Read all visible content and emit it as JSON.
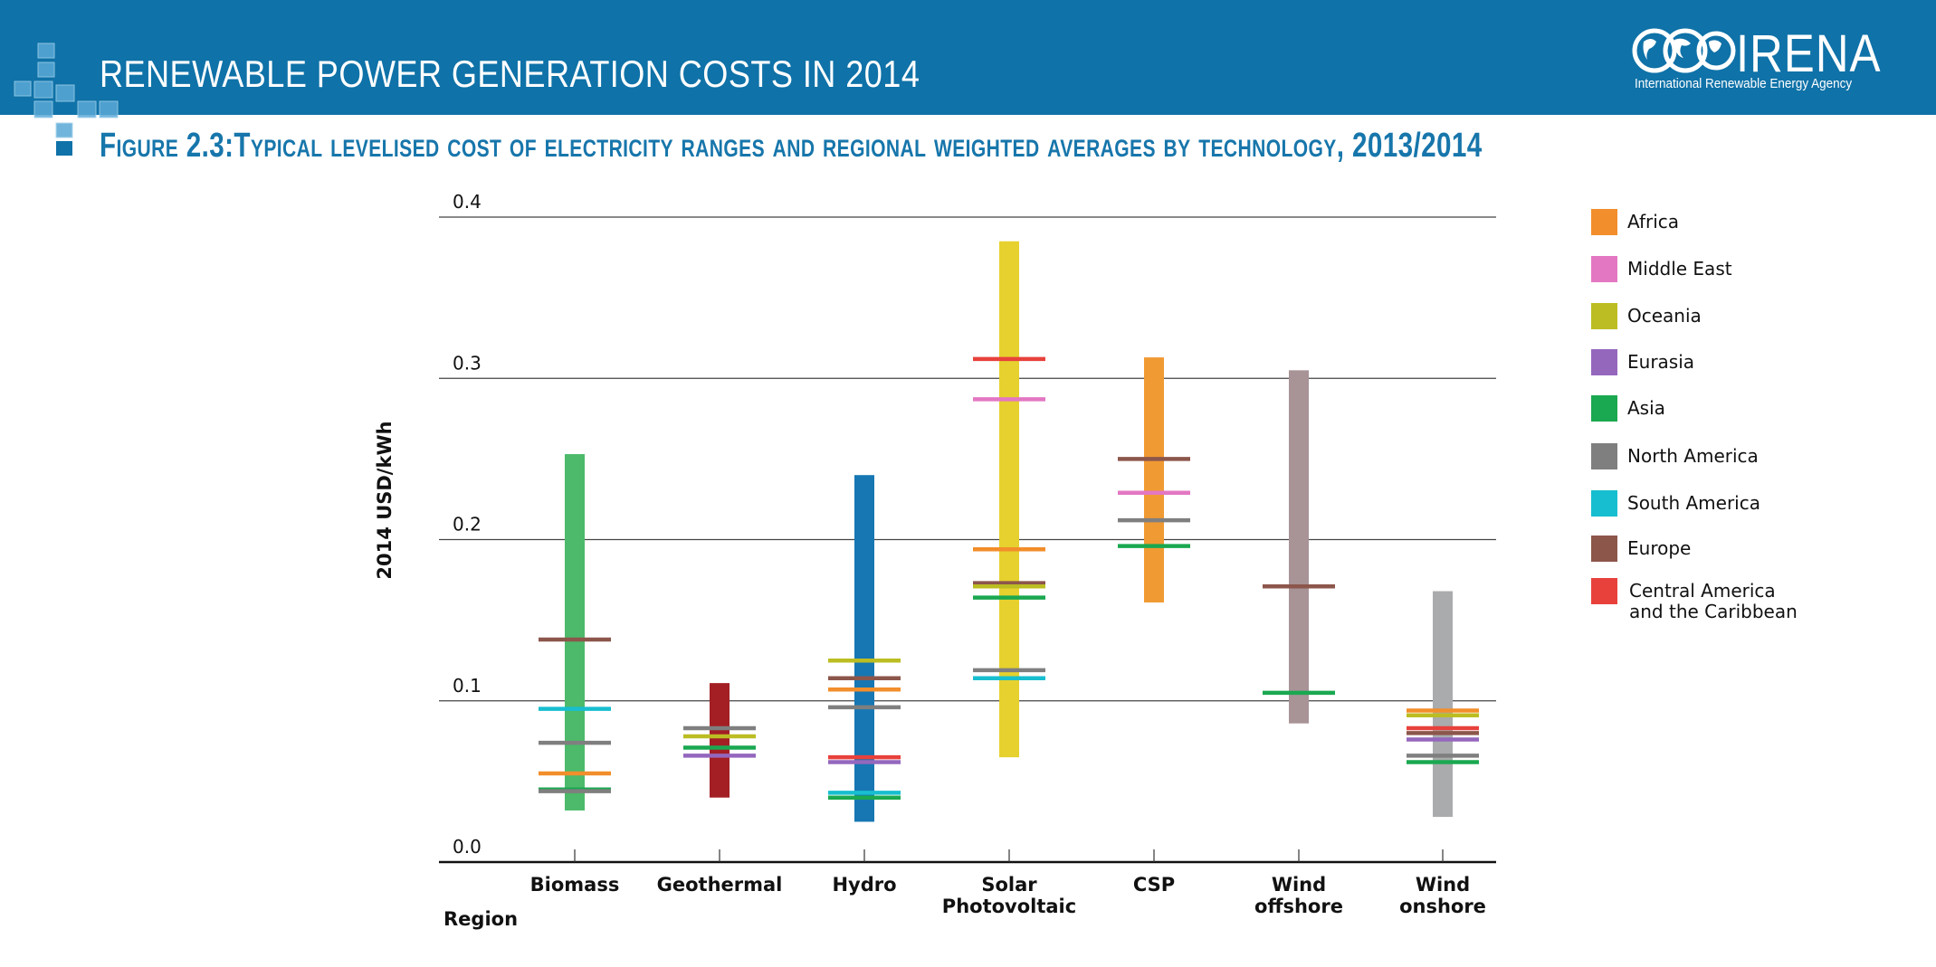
{
  "header": {
    "banner_title": "RENEWABLE POWER GENERATION COSTS IN 2014",
    "logo_text": "IRENA",
    "logo_subtitle": "International Renewable Energy Agency",
    "figure_title": "Figure 2.3:Typical levelised cost of electricity ranges and regional weighted averages by technology, 2013/2014",
    "banner_color": "#0f72a8"
  },
  "chart_data": {
    "type": "range-bar",
    "title": "Typical levelised cost of electricity ranges and regional weighted averages by technology, 2013/2014",
    "ylabel": "2014 USD/kWh",
    "xlabel": "Region",
    "ylim": [
      0,
      0.4
    ],
    "yticks": [
      "0.0",
      "0.1",
      "0.2",
      "0.3",
      "0.4"
    ],
    "grid": true,
    "legend_position": "right",
    "regions": [
      {
        "name": "Africa",
        "color": "#f28e2b"
      },
      {
        "name": "Middle East",
        "color": "#e377c2"
      },
      {
        "name": "Oceania",
        "color": "#bcbd22"
      },
      {
        "name": "Eurasia",
        "color": "#9467bd"
      },
      {
        "name": "Asia",
        "color": "#1aa850"
      },
      {
        "name": "North America",
        "color": "#7f7f7f"
      },
      {
        "name": "South America",
        "color": "#17becf"
      },
      {
        "name": "Europe",
        "color": "#8c564b"
      },
      {
        "name": "Central America and the Caribbean",
        "color": "#e8413c"
      }
    ],
    "technologies": [
      {
        "label": "Biomass",
        "range": [
          0.032,
          0.253
        ],
        "color": "#4cba6a",
        "averages": [
          {
            "region": "Europe",
            "value": 0.138
          },
          {
            "region": "South America",
            "value": 0.095
          },
          {
            "region": "North America",
            "value": 0.074
          },
          {
            "region": "Africa",
            "value": 0.055
          },
          {
            "region": "Asia",
            "value": 0.045
          },
          {
            "region": "North America",
            "value": 0.044
          }
        ]
      },
      {
        "label": "Geothermal",
        "range": [
          0.04,
          0.111
        ],
        "color": "#a31f24",
        "averages": [
          {
            "region": "North America",
            "value": 0.083
          },
          {
            "region": "Oceania",
            "value": 0.078
          },
          {
            "region": "Asia",
            "value": 0.071
          },
          {
            "region": "Eurasia",
            "value": 0.066
          }
        ]
      },
      {
        "label": "Hydro",
        "range": [
          0.025,
          0.24
        ],
        "color": "#1677b3",
        "averages": [
          {
            "region": "Oceania",
            "value": 0.125
          },
          {
            "region": "Europe",
            "value": 0.114
          },
          {
            "region": "Africa",
            "value": 0.107
          },
          {
            "region": "North America",
            "value": 0.096
          },
          {
            "region": "Central America and the Caribbean",
            "value": 0.065
          },
          {
            "region": "Eurasia",
            "value": 0.062
          },
          {
            "region": "South America",
            "value": 0.043
          },
          {
            "region": "Asia",
            "value": 0.04
          }
        ]
      },
      {
        "label": "Solar Photovoltaic",
        "range": [
          0.065,
          0.385
        ],
        "color": "#e6d12e",
        "averages": [
          {
            "region": "Central America and the Caribbean",
            "value": 0.312
          },
          {
            "region": "Middle East",
            "value": 0.287
          },
          {
            "region": "Africa",
            "value": 0.194
          },
          {
            "region": "Europe",
            "value": 0.173
          },
          {
            "region": "Oceania",
            "value": 0.171
          },
          {
            "region": "Asia",
            "value": 0.164
          },
          {
            "region": "North America",
            "value": 0.119
          },
          {
            "region": "South America",
            "value": 0.114
          }
        ]
      },
      {
        "label": "CSP",
        "range": [
          0.161,
          0.313
        ],
        "color": "#f09a33",
        "averages": [
          {
            "region": "Europe",
            "value": 0.25
          },
          {
            "region": "Middle East",
            "value": 0.229
          },
          {
            "region": "North America",
            "value": 0.212
          },
          {
            "region": "Asia",
            "value": 0.196
          }
        ]
      },
      {
        "label": "Wind offshore",
        "range": [
          0.086,
          0.305
        ],
        "color": "#a89396",
        "averages": [
          {
            "region": "Europe",
            "value": 0.171
          },
          {
            "region": "Asia",
            "value": 0.105
          }
        ]
      },
      {
        "label": "Wind onshore",
        "range": [
          0.028,
          0.168
        ],
        "color": "#a9abad",
        "averages": [
          {
            "region": "Africa",
            "value": 0.094
          },
          {
            "region": "Oceania",
            "value": 0.091
          },
          {
            "region": "Central America and the Caribbean",
            "value": 0.083
          },
          {
            "region": "Europe",
            "value": 0.08
          },
          {
            "region": "Eurasia",
            "value": 0.076
          },
          {
            "region": "North America",
            "value": 0.066
          },
          {
            "region": "Asia",
            "value": 0.062
          }
        ]
      }
    ]
  }
}
